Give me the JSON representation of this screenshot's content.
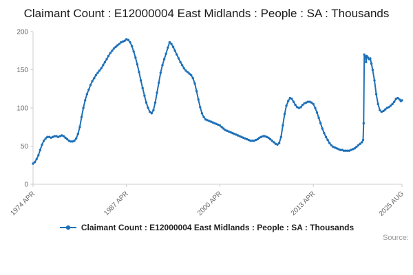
{
  "header": {
    "title": "Claimant Count : E12000004 East Midlands : People : SA : Thousands"
  },
  "legend": {
    "label": "Claimant Count : E12000004 East Midlands : People : SA : Thousands"
  },
  "footer": {
    "source_label": "Source:"
  },
  "chart_data": {
    "type": "line",
    "title": "Claimant Count : E12000004 East Midlands : People : SA : Thousands",
    "series_name": "Claimant Count : E12000004 East Midlands : People : SA : Thousands",
    "color": "#1d70b8",
    "axis_color": "#cccccc",
    "tick_text_color": "#666666",
    "xlabel": "",
    "ylabel": "",
    "grid": false,
    "legend_position": "bottom",
    "xlim": [
      1974.25,
      2025.58
    ],
    "ylim": [
      0,
      200
    ],
    "y_ticks": [
      {
        "pos": 0,
        "label": "0"
      },
      {
        "pos": 50,
        "label": "50"
      },
      {
        "pos": 100,
        "label": "100"
      },
      {
        "pos": 150,
        "label": "150"
      },
      {
        "pos": 200,
        "label": "200"
      }
    ],
    "x_ticks": [
      {
        "pos": 1974.25,
        "label": "1974 APR"
      },
      {
        "pos": 1987.25,
        "label": "1987 APR"
      },
      {
        "pos": 2000.25,
        "label": "2000 APR"
      },
      {
        "pos": 2013.25,
        "label": "2013 APR"
      },
      {
        "pos": 2025.58,
        "label": "2025 AUG"
      }
    ],
    "points": [
      [
        1974.25,
        27
      ],
      [
        1974.5,
        29
      ],
      [
        1974.75,
        33
      ],
      [
        1975,
        38
      ],
      [
        1975.25,
        45
      ],
      [
        1975.5,
        52
      ],
      [
        1975.75,
        57
      ],
      [
        1976,
        60
      ],
      [
        1976.25,
        62
      ],
      [
        1976.5,
        62
      ],
      [
        1976.75,
        61
      ],
      [
        1977,
        62
      ],
      [
        1977.25,
        63
      ],
      [
        1977.5,
        63
      ],
      [
        1977.75,
        62
      ],
      [
        1978,
        63
      ],
      [
        1978.25,
        64
      ],
      [
        1978.5,
        63
      ],
      [
        1978.75,
        61
      ],
      [
        1979,
        59
      ],
      [
        1979.25,
        57
      ],
      [
        1979.5,
        56
      ],
      [
        1979.75,
        56
      ],
      [
        1980,
        57
      ],
      [
        1980.25,
        60
      ],
      [
        1980.5,
        66
      ],
      [
        1980.75,
        75
      ],
      [
        1981,
        88
      ],
      [
        1981.25,
        100
      ],
      [
        1981.5,
        110
      ],
      [
        1981.75,
        118
      ],
      [
        1982,
        124
      ],
      [
        1982.25,
        130
      ],
      [
        1982.5,
        135
      ],
      [
        1982.75,
        139
      ],
      [
        1983,
        143
      ],
      [
        1983.25,
        146
      ],
      [
        1983.5,
        149
      ],
      [
        1983.75,
        152
      ],
      [
        1984,
        156
      ],
      [
        1984.25,
        160
      ],
      [
        1984.5,
        164
      ],
      [
        1984.75,
        168
      ],
      [
        1985,
        172
      ],
      [
        1985.25,
        175
      ],
      [
        1985.5,
        178
      ],
      [
        1985.75,
        180
      ],
      [
        1986,
        182
      ],
      [
        1986.25,
        184
      ],
      [
        1986.5,
        186
      ],
      [
        1986.75,
        187
      ],
      [
        1987,
        188
      ],
      [
        1987.25,
        190
      ],
      [
        1987.5,
        189
      ],
      [
        1987.75,
        186
      ],
      [
        1988,
        181
      ],
      [
        1988.25,
        174
      ],
      [
        1988.5,
        166
      ],
      [
        1988.75,
        157
      ],
      [
        1989,
        147
      ],
      [
        1989.25,
        136
      ],
      [
        1989.5,
        126
      ],
      [
        1989.75,
        116
      ],
      [
        1990,
        107
      ],
      [
        1990.25,
        100
      ],
      [
        1990.5,
        95
      ],
      [
        1990.75,
        93
      ],
      [
        1991,
        97
      ],
      [
        1991.25,
        107
      ],
      [
        1991.5,
        120
      ],
      [
        1991.75,
        133
      ],
      [
        1992,
        146
      ],
      [
        1992.25,
        156
      ],
      [
        1992.5,
        164
      ],
      [
        1992.75,
        171
      ],
      [
        1993,
        179
      ],
      [
        1993.25,
        186
      ],
      [
        1993.5,
        184
      ],
      [
        1993.75,
        180
      ],
      [
        1994,
        175
      ],
      [
        1994.25,
        170
      ],
      [
        1994.5,
        165
      ],
      [
        1994.75,
        160
      ],
      [
        1995,
        156
      ],
      [
        1995.25,
        152
      ],
      [
        1995.5,
        149
      ],
      [
        1995.75,
        147
      ],
      [
        1996,
        145
      ],
      [
        1996.25,
        143
      ],
      [
        1996.5,
        139
      ],
      [
        1996.75,
        132
      ],
      [
        1997,
        122
      ],
      [
        1997.25,
        111
      ],
      [
        1997.5,
        101
      ],
      [
        1997.75,
        93
      ],
      [
        1998,
        88
      ],
      [
        1998.25,
        85
      ],
      [
        1998.5,
        84
      ],
      [
        1998.75,
        83
      ],
      [
        1999,
        82
      ],
      [
        1999.25,
        81
      ],
      [
        1999.5,
        80
      ],
      [
        1999.75,
        79
      ],
      [
        2000,
        78
      ],
      [
        2000.25,
        77
      ],
      [
        2000.5,
        75
      ],
      [
        2000.75,
        73
      ],
      [
        2001,
        71
      ],
      [
        2001.25,
        70
      ],
      [
        2001.5,
        69
      ],
      [
        2001.75,
        68
      ],
      [
        2002,
        67
      ],
      [
        2002.25,
        66
      ],
      [
        2002.5,
        65
      ],
      [
        2002.75,
        64
      ],
      [
        2003,
        63
      ],
      [
        2003.25,
        62
      ],
      [
        2003.5,
        61
      ],
      [
        2003.75,
        60
      ],
      [
        2004,
        59
      ],
      [
        2004.25,
        58
      ],
      [
        2004.5,
        57
      ],
      [
        2004.75,
        57
      ],
      [
        2005,
        57
      ],
      [
        2005.25,
        58
      ],
      [
        2005.5,
        59
      ],
      [
        2005.75,
        61
      ],
      [
        2006,
        62
      ],
      [
        2006.25,
        63
      ],
      [
        2006.5,
        63
      ],
      [
        2006.75,
        62
      ],
      [
        2007,
        61
      ],
      [
        2007.25,
        59
      ],
      [
        2007.5,
        57
      ],
      [
        2007.75,
        55
      ],
      [
        2008,
        53
      ],
      [
        2008.25,
        52
      ],
      [
        2008.5,
        54
      ],
      [
        2008.75,
        62
      ],
      [
        2009,
        77
      ],
      [
        2009.25,
        92
      ],
      [
        2009.5,
        103
      ],
      [
        2009.75,
        109
      ],
      [
        2010,
        113
      ],
      [
        2010.25,
        112
      ],
      [
        2010.5,
        108
      ],
      [
        2010.75,
        104
      ],
      [
        2011,
        101
      ],
      [
        2011.25,
        100
      ],
      [
        2011.5,
        101
      ],
      [
        2011.75,
        104
      ],
      [
        2012,
        106
      ],
      [
        2012.25,
        107
      ],
      [
        2012.5,
        108
      ],
      [
        2012.75,
        108
      ],
      [
        2013,
        107
      ],
      [
        2013.25,
        105
      ],
      [
        2013.5,
        100
      ],
      [
        2013.75,
        94
      ],
      [
        2014,
        87
      ],
      [
        2014.25,
        80
      ],
      [
        2014.5,
        73
      ],
      [
        2014.75,
        67
      ],
      [
        2015,
        62
      ],
      [
        2015.25,
        58
      ],
      [
        2015.5,
        54
      ],
      [
        2015.75,
        51
      ],
      [
        2016,
        49
      ],
      [
        2016.25,
        48
      ],
      [
        2016.5,
        47
      ],
      [
        2016.75,
        46
      ],
      [
        2017,
        45
      ],
      [
        2017.25,
        45
      ],
      [
        2017.5,
        44
      ],
      [
        2017.75,
        44
      ],
      [
        2018,
        44
      ],
      [
        2018.25,
        44
      ],
      [
        2018.5,
        45
      ],
      [
        2018.75,
        46
      ],
      [
        2019,
        47
      ],
      [
        2019.25,
        49
      ],
      [
        2019.5,
        51
      ],
      [
        2019.75,
        53
      ],
      [
        2020,
        55
      ],
      [
        2020.17,
        58
      ],
      [
        2020.25,
        80
      ],
      [
        2020.33,
        170
      ],
      [
        2020.5,
        167
      ],
      [
        2020.58,
        160
      ],
      [
        2020.67,
        168
      ],
      [
        2020.83,
        166
      ],
      [
        2021,
        164
      ],
      [
        2021.17,
        165
      ],
      [
        2021.33,
        158
      ],
      [
        2021.5,
        150
      ],
      [
        2021.75,
        136
      ],
      [
        2022,
        118
      ],
      [
        2022.25,
        105
      ],
      [
        2022.5,
        97
      ],
      [
        2022.75,
        95
      ],
      [
        2023,
        96
      ],
      [
        2023.25,
        98
      ],
      [
        2023.5,
        100
      ],
      [
        2023.75,
        101
      ],
      [
        2024,
        103
      ],
      [
        2024.25,
        105
      ],
      [
        2024.5,
        108
      ],
      [
        2024.75,
        112
      ],
      [
        2025,
        113
      ],
      [
        2025.25,
        111
      ],
      [
        2025.42,
        109
      ],
      [
        2025.58,
        110
      ]
    ]
  }
}
